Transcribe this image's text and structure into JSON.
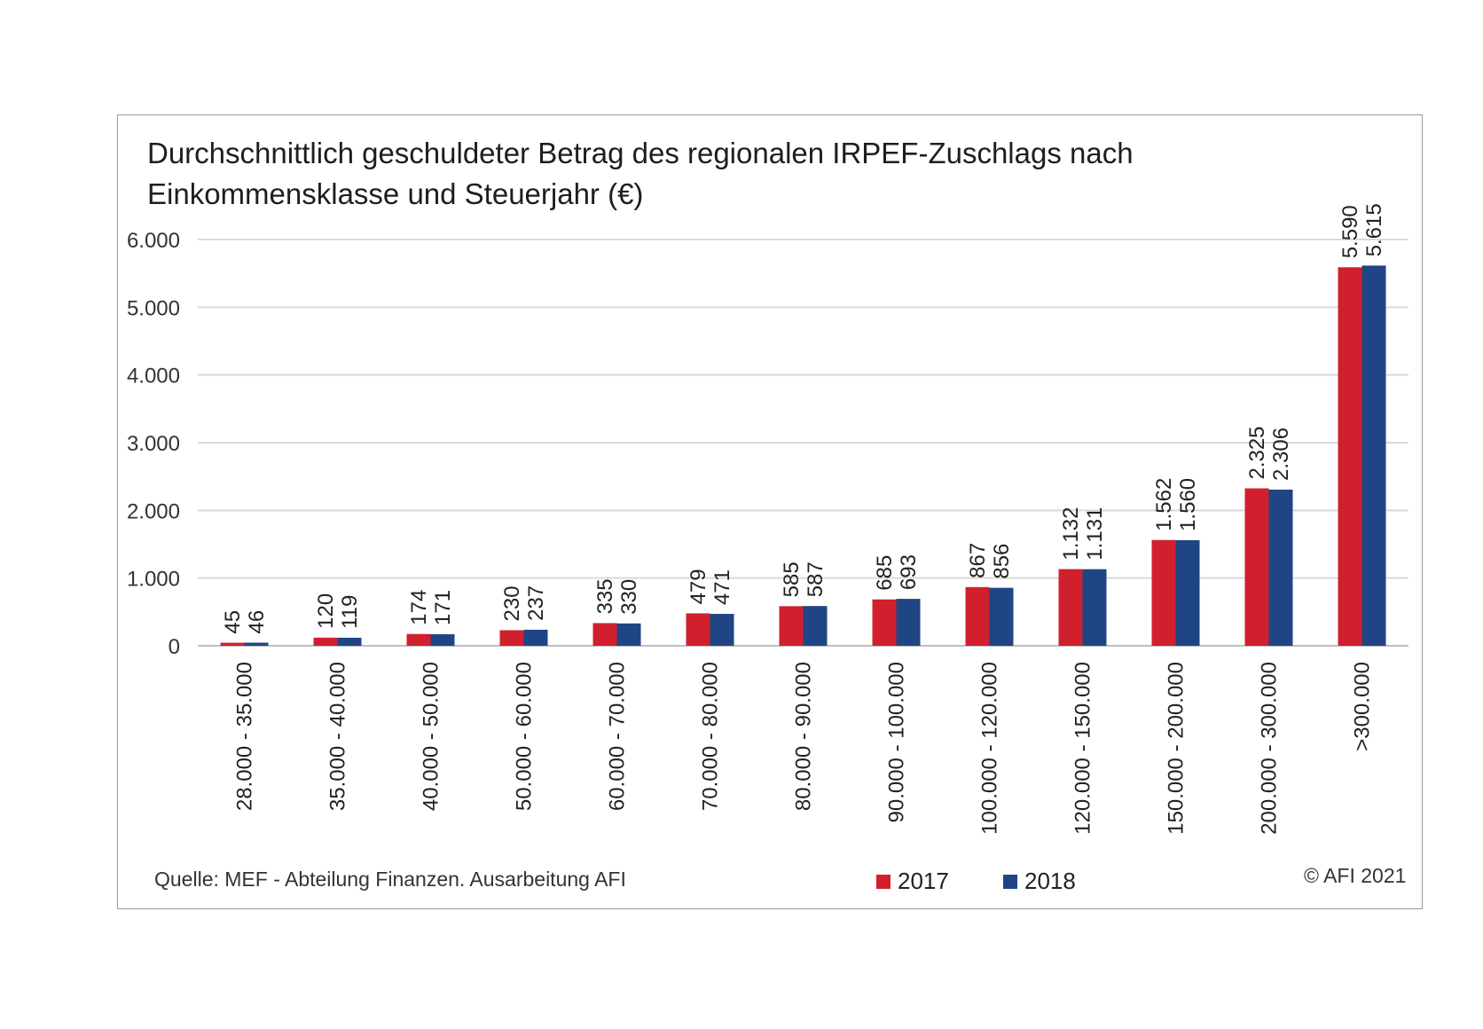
{
  "chart_data": {
    "type": "bar",
    "title_line1": "Durchschnittlich geschuldeter Betrag des regionalen IRPEF-Zuschlags nach",
    "title_line2": "Einkommensklasse und Steuerjahr (€)",
    "categories": [
      "28.000 - 35.000",
      "35.000 - 40.000",
      "40.000 - 50.000",
      "50.000 - 60.000",
      "60.000 - 70.000",
      "70.000 - 80.000",
      "80.000 - 90.000",
      "90.000 - 100.000",
      "100.000 - 120.000",
      "120.000 - 150.000",
      "150.000 - 200.000",
      "200.000 - 300.000",
      ">300.000"
    ],
    "series": [
      {
        "name": "2017",
        "color": "#d0202e",
        "values": [
          45,
          120,
          174,
          230,
          335,
          479,
          585,
          685,
          867,
          1132,
          1562,
          2325,
          5590
        ],
        "labels": [
          "45",
          "120",
          "174",
          "230",
          "335",
          "479",
          "585",
          "685",
          "867",
          "1.132",
          "1.562",
          "2.325",
          "5.590"
        ]
      },
      {
        "name": "2018",
        "color": "#1f4584",
        "values": [
          46,
          119,
          171,
          237,
          330,
          471,
          587,
          693,
          856,
          1131,
          1560,
          2306,
          5615
        ],
        "labels": [
          "46",
          "119",
          "171",
          "237",
          "330",
          "471",
          "587",
          "693",
          "856",
          "1.131",
          "1.560",
          "2.306",
          "5.615"
        ]
      }
    ],
    "ylim": [
      0,
      6000
    ],
    "yticks": [
      0,
      1000,
      2000,
      3000,
      4000,
      5000,
      6000
    ],
    "ytick_labels": [
      "0",
      "1.000",
      "2.000",
      "3.000",
      "4.000",
      "5.000",
      "6.000"
    ],
    "grid": true,
    "legend_position": "bottom-center"
  },
  "source_note": "Quelle: MEF - Abteilung Finanzen. Ausarbeitung AFI",
  "copyright": "© AFI 2021",
  "colors": {
    "gridline": "#d9d9d9",
    "axis": "#bfbfbf"
  }
}
